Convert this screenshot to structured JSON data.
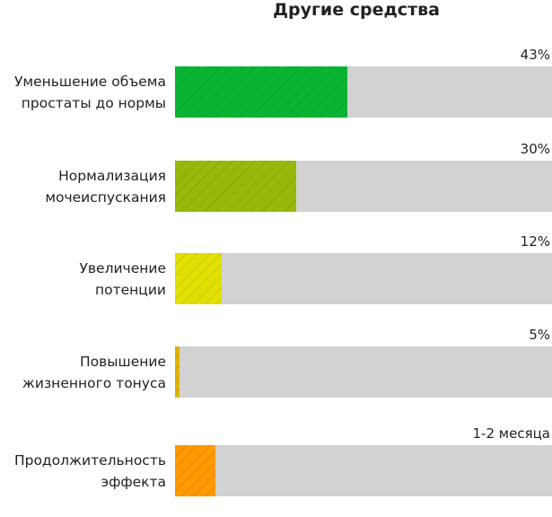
{
  "chart_data": {
    "type": "bar",
    "orientation": "horizontal",
    "title": "Другие средства",
    "categories": [
      "Уменьшение объема простаты до нормы",
      "Нормализация мочеиспускания",
      "Увеличение потенции",
      "Повышение жизненного тонуса",
      "Продолжительность эффекта"
    ],
    "label_lines": [
      [
        "Уменьшение объема",
        "простаты до нормы"
      ],
      [
        "Нормализация",
        "мочеиспускания"
      ],
      [
        "Увеличение",
        "потенции"
      ],
      [
        "Повышение",
        "жизненного тонуса"
      ],
      [
        "Продолжительность",
        "эффекта"
      ]
    ],
    "value_labels": [
      "43%",
      "30%",
      "12%",
      "5%",
      "1-2 месяца"
    ],
    "values": [
      43,
      30,
      12,
      5,
      null
    ],
    "fill_fraction": [
      0.457,
      0.321,
      0.124,
      0.012,
      0.107
    ],
    "colors": [
      "#0ab534",
      "#97b90a",
      "#e2e000",
      "#e0b400",
      "#ff9a00"
    ],
    "track_color": "#d2d2d2",
    "grid": false
  }
}
